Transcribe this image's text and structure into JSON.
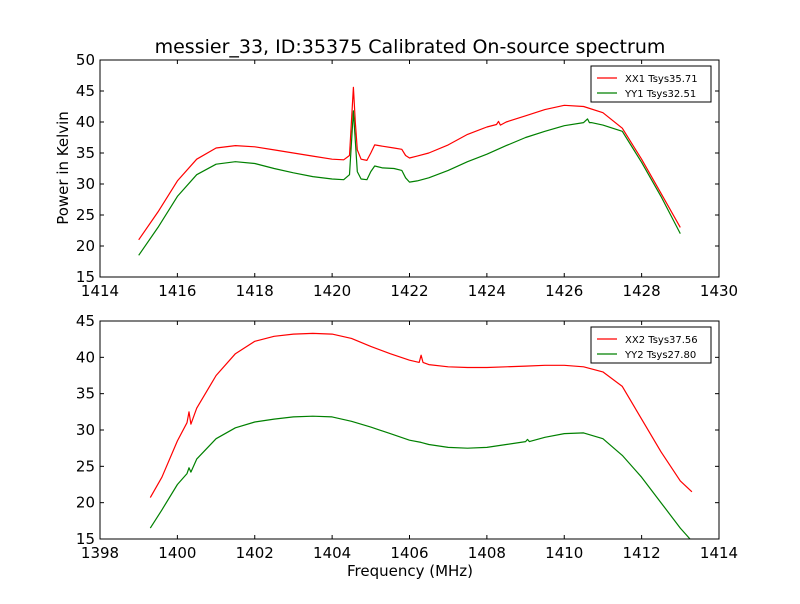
{
  "figure": {
    "title": "messier_33, ID:35375 Calibrated On-source spectrum",
    "xlabel": "Frequency (MHz)",
    "ylabel": "Power in Kelvin"
  },
  "chart_data": [
    {
      "type": "line",
      "title": "messier_33, ID:35375 Calibrated On-source spectrum",
      "xlabel": "",
      "ylabel": "Power in Kelvin",
      "xlim": [
        1414,
        1430
      ],
      "ylim": [
        15,
        50
      ],
      "xticks": [
        1414,
        1416,
        1418,
        1420,
        1422,
        1424,
        1426,
        1428,
        1430
      ],
      "yticks": [
        15,
        20,
        25,
        30,
        35,
        40,
        45,
        50
      ],
      "grid": false,
      "legend": "top-right",
      "series": [
        {
          "name": "XX1 Tsys35.71",
          "color": "#ff0000",
          "x": [
            1415.0,
            1415.5,
            1416.0,
            1416.5,
            1417.0,
            1417.5,
            1418.0,
            1418.5,
            1419.0,
            1419.5,
            1420.0,
            1420.3,
            1420.45,
            1420.55,
            1420.6,
            1420.65,
            1420.75,
            1420.9,
            1421.0,
            1421.1,
            1421.3,
            1421.6,
            1421.8,
            1421.9,
            1422.0,
            1422.2,
            1422.5,
            1423.0,
            1423.5,
            1424.0,
            1424.25,
            1424.3,
            1424.35,
            1424.5,
            1425.0,
            1425.5,
            1426.0,
            1426.5,
            1427.0,
            1427.5,
            1428.0,
            1428.5,
            1429.0
          ],
          "y": [
            21.0,
            25.5,
            30.5,
            34.0,
            35.8,
            36.2,
            36.0,
            35.5,
            35.0,
            34.5,
            34.0,
            33.9,
            34.6,
            45.6,
            40.0,
            35.5,
            34.0,
            33.8,
            35.0,
            36.3,
            36.1,
            35.8,
            35.6,
            34.6,
            34.2,
            34.5,
            35.0,
            36.3,
            38.0,
            39.2,
            39.6,
            40.1,
            39.5,
            40.0,
            41.0,
            42.0,
            42.7,
            42.5,
            41.5,
            39.0,
            34.0,
            28.5,
            23.0
          ]
        },
        {
          "name": "YY1 Tsys32.51",
          "color": "#008000",
          "x": [
            1415.0,
            1415.5,
            1416.0,
            1416.5,
            1417.0,
            1417.5,
            1418.0,
            1418.5,
            1419.0,
            1419.5,
            1420.0,
            1420.3,
            1420.45,
            1420.55,
            1420.6,
            1420.65,
            1420.75,
            1420.9,
            1421.0,
            1421.1,
            1421.3,
            1421.6,
            1421.8,
            1421.9,
            1422.0,
            1422.2,
            1422.5,
            1423.0,
            1423.5,
            1424.0,
            1424.5,
            1425.0,
            1425.5,
            1426.0,
            1426.5,
            1426.6,
            1426.65,
            1426.7,
            1427.0,
            1427.5,
            1428.0,
            1428.5,
            1429.0
          ],
          "y": [
            18.5,
            23.0,
            28.0,
            31.5,
            33.2,
            33.6,
            33.3,
            32.5,
            31.8,
            31.2,
            30.8,
            30.7,
            31.5,
            41.8,
            37.0,
            32.0,
            30.8,
            30.7,
            32.0,
            32.9,
            32.6,
            32.5,
            32.2,
            31.0,
            30.3,
            30.5,
            31.0,
            32.2,
            33.6,
            34.8,
            36.2,
            37.5,
            38.5,
            39.4,
            39.9,
            40.5,
            39.9,
            39.9,
            39.5,
            38.5,
            33.5,
            28.0,
            22.0
          ]
        }
      ]
    },
    {
      "type": "line",
      "title": "",
      "xlabel": "Frequency (MHz)",
      "ylabel": "",
      "xlim": [
        1398,
        1414
      ],
      "ylim": [
        15,
        45
      ],
      "xticks": [
        1398,
        1400,
        1402,
        1404,
        1406,
        1408,
        1410,
        1412,
        1414
      ],
      "yticks": [
        15,
        20,
        25,
        30,
        35,
        40,
        45
      ],
      "grid": false,
      "legend": "top-right",
      "series": [
        {
          "name": "XX2 Tsys37.56",
          "color": "#ff0000",
          "x": [
            1399.3,
            1399.6,
            1400.0,
            1400.25,
            1400.3,
            1400.35,
            1400.5,
            1401.0,
            1401.5,
            1402.0,
            1402.5,
            1403.0,
            1403.5,
            1404.0,
            1404.5,
            1405.0,
            1405.5,
            1406.0,
            1406.25,
            1406.3,
            1406.35,
            1406.5,
            1407.0,
            1407.5,
            1408.0,
            1408.5,
            1409.0,
            1409.5,
            1410.0,
            1410.5,
            1411.0,
            1411.5,
            1412.0,
            1412.5,
            1413.0,
            1413.3
          ],
          "y": [
            20.7,
            23.5,
            28.5,
            31.0,
            32.5,
            30.8,
            33.0,
            37.5,
            40.5,
            42.2,
            42.9,
            43.2,
            43.3,
            43.2,
            42.6,
            41.5,
            40.5,
            39.6,
            39.3,
            40.3,
            39.3,
            39.0,
            38.7,
            38.6,
            38.6,
            38.7,
            38.8,
            38.9,
            38.9,
            38.7,
            38.0,
            36.0,
            31.5,
            27.0,
            23.0,
            21.5
          ]
        },
        {
          "name": "YY2 Tsys27.80",
          "color": "#008000",
          "x": [
            1399.3,
            1399.6,
            1400.0,
            1400.25,
            1400.3,
            1400.35,
            1400.5,
            1401.0,
            1401.5,
            1402.0,
            1402.5,
            1403.0,
            1403.5,
            1404.0,
            1404.5,
            1405.0,
            1405.5,
            1406.0,
            1406.3,
            1406.5,
            1407.0,
            1407.5,
            1408.0,
            1408.5,
            1409.0,
            1409.05,
            1409.1,
            1409.5,
            1410.0,
            1410.5,
            1411.0,
            1411.5,
            1412.0,
            1412.5,
            1413.0,
            1413.25
          ],
          "y": [
            16.5,
            19.0,
            22.5,
            24.0,
            24.8,
            24.2,
            26.0,
            28.8,
            30.3,
            31.1,
            31.5,
            31.8,
            31.9,
            31.8,
            31.2,
            30.4,
            29.5,
            28.6,
            28.3,
            28.0,
            27.6,
            27.5,
            27.6,
            28.0,
            28.4,
            28.7,
            28.4,
            29.0,
            29.5,
            29.6,
            28.8,
            26.5,
            23.5,
            20.0,
            16.5,
            15.0
          ]
        }
      ]
    }
  ]
}
